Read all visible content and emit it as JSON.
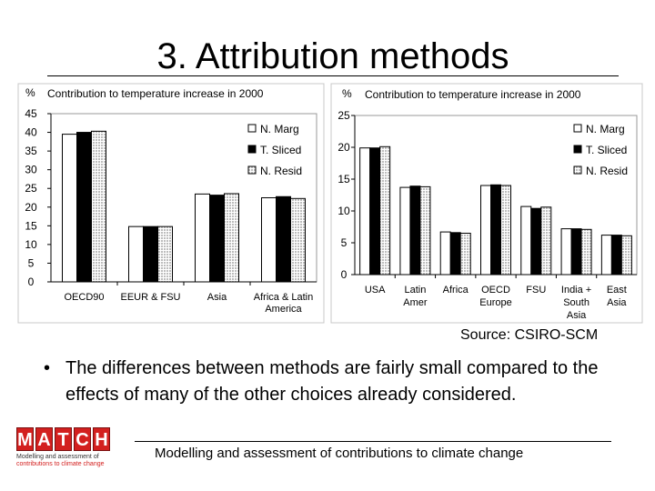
{
  "slide": {
    "title": "3. Attribution methods",
    "source": "Source: CSIRO-SCM",
    "bullet": "The differences between methods are fairly small compared to the effects of many of the other choices already considered.",
    "footer": "Modelling and assessment of contributions to climate change",
    "logo": {
      "letters": [
        "M",
        "A",
        "T",
        "C",
        "H"
      ],
      "tagline_1": "Modelling and assessment of",
      "tagline_2": "contributions to climate change"
    }
  },
  "chart_data": [
    {
      "type": "bar",
      "title": "Contribution to temperature increase in 2000",
      "ylabel": "%",
      "ylim": [
        0,
        45
      ],
      "yticks": [
        0,
        5,
        10,
        15,
        20,
        25,
        30,
        35,
        40,
        45
      ],
      "grid": false,
      "legend": "top-right",
      "categories": [
        "OECD90",
        "EEUR & FSU",
        "Asia",
        "Africa & Latin America"
      ],
      "series": [
        {
          "name": "N. Marg",
          "values": [
            39.5,
            14.8,
            23.5,
            22.5
          ]
        },
        {
          "name": "T. Sliced",
          "values": [
            40.0,
            14.8,
            23.2,
            22.8
          ]
        },
        {
          "name": "N. Resid",
          "values": [
            40.3,
            14.8,
            23.6,
            22.3
          ]
        }
      ]
    },
    {
      "type": "bar",
      "title": "Contribution to temperature increase in 2000",
      "ylabel": "%",
      "ylim": [
        0,
        25
      ],
      "yticks": [
        0,
        5,
        10,
        15,
        20,
        25
      ],
      "grid": false,
      "legend": "top-right",
      "categories": [
        "USA",
        "Latin Amer",
        "Africa",
        "OECD Europe",
        "FSU",
        "India + South Asia",
        "East Asia"
      ],
      "series": [
        {
          "name": "N. Marg",
          "values": [
            19.9,
            13.7,
            6.7,
            14.0,
            10.7,
            7.2,
            6.2
          ]
        },
        {
          "name": "T. Sliced",
          "values": [
            19.9,
            13.9,
            6.6,
            14.1,
            10.4,
            7.2,
            6.2
          ]
        },
        {
          "name": "N. Resid",
          "values": [
            20.1,
            13.8,
            6.5,
            14.0,
            10.6,
            7.1,
            6.1
          ]
        }
      ]
    }
  ]
}
